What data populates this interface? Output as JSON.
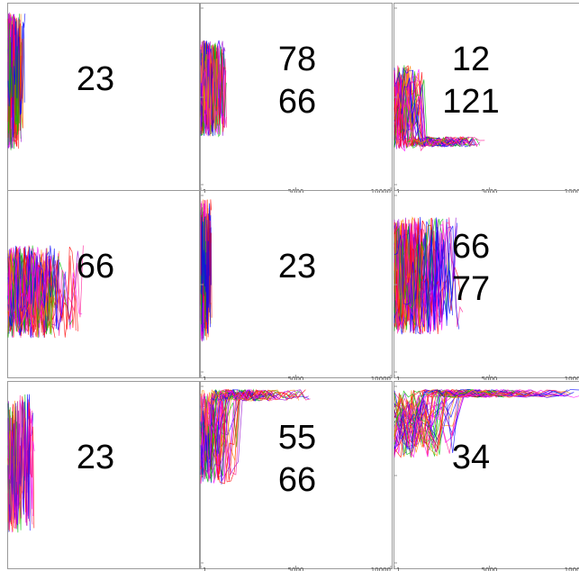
{
  "chart_data": {
    "type": "line",
    "layout": "3x3 small multiples",
    "xlim": [
      1,
      10000
    ],
    "ylim": [
      1,
      100
    ],
    "x_ticks": [
      "1",
      "5000",
      "10000"
    ],
    "y_ticks": [
      "1",
      "50",
      "100"
    ],
    "series_colors": [
      "#ff0000",
      "#00c000",
      "#0000ff",
      "#ff00ff",
      "#ff8800",
      "#ff1493",
      "#9400d3"
    ],
    "panels": [
      {
        "id": "r1c1",
        "labels": [
          "23"
        ],
        "x_ticks_visible": false,
        "y_ticks_visible": false,
        "extent_x": 900,
        "y_range": [
          20,
          98
        ],
        "plateau": null,
        "n_lines": 24
      },
      {
        "id": "r1c2",
        "labels": [
          "78",
          "66"
        ],
        "x_ticks_visible": true,
        "y_ticks_visible": true,
        "extent_x": 1400,
        "y_range": [
          28,
          82
        ],
        "plateau": null,
        "n_lines": 34
      },
      {
        "id": "r1c3",
        "labels": [
          "12",
          "121"
        ],
        "x_ticks_visible": true,
        "y_ticks_visible": true,
        "extent_x": 4800,
        "y_range": [
          20,
          68
        ],
        "plateau": 25,
        "n_lines": 40
      },
      {
        "id": "r2c1",
        "labels": [
          "66"
        ],
        "x_ticks_visible": false,
        "y_ticks_visible": false,
        "extent_x": 4000,
        "y_range": [
          20,
          72
        ],
        "plateau": null,
        "n_lines": 40
      },
      {
        "id": "r2c2",
        "labels": [
          "23"
        ],
        "x_ticks_visible": true,
        "y_ticks_visible": true,
        "extent_x": 600,
        "y_range": [
          18,
          98
        ],
        "plateau": null,
        "n_lines": 24
      },
      {
        "id": "r2c3",
        "labels": [
          "66",
          "77"
        ],
        "x_ticks_visible": true,
        "y_ticks_visible": true,
        "extent_x": 3600,
        "y_range": [
          22,
          88
        ],
        "plateau": null,
        "n_lines": 38
      },
      {
        "id": "r3c1",
        "labels": [
          "23"
        ],
        "x_ticks_visible": false,
        "y_ticks_visible": false,
        "extent_x": 1400,
        "y_range": [
          18,
          96
        ],
        "plateau": null,
        "n_lines": 14
      },
      {
        "id": "r3c2",
        "labels": [
          "55",
          "66"
        ],
        "x_ticks_visible": true,
        "y_ticks_visible": true,
        "extent_x": 5800,
        "y_range": [
          45,
          98
        ],
        "plateau": 95,
        "n_lines": 40
      },
      {
        "id": "r3c3",
        "labels": [
          "34"
        ],
        "x_ticks_visible": true,
        "y_ticks_visible": true,
        "extent_x": 10000,
        "y_range": [
          60,
          98
        ],
        "plateau": 96,
        "n_lines": 40
      }
    ]
  }
}
